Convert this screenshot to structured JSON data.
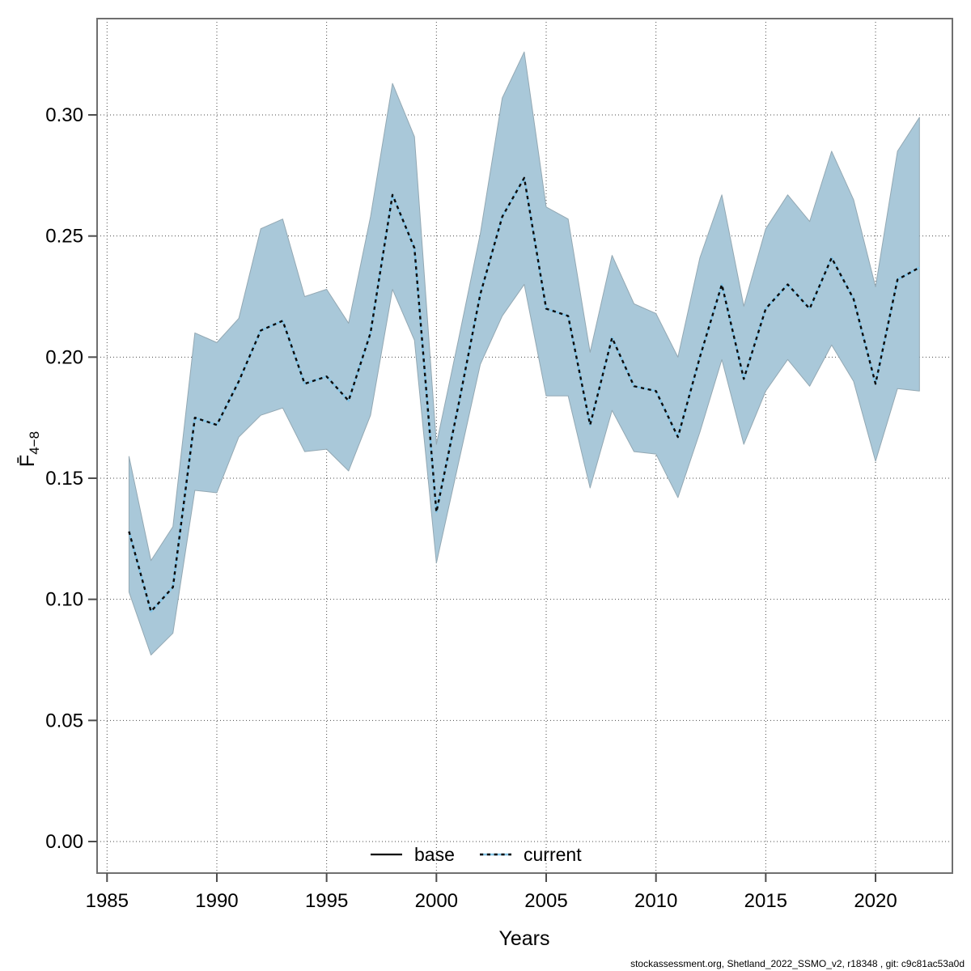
{
  "page": {
    "background": "#ffffff"
  },
  "chart_data": {
    "type": "area",
    "title": "",
    "xlabel": "Years",
    "ylabel_main": "F̄",
    "ylabel_sub": "4−8",
    "x": [
      1986,
      1987,
      1988,
      1989,
      1990,
      1991,
      1992,
      1993,
      1994,
      1995,
      1996,
      1997,
      1998,
      1999,
      2000,
      2001,
      2002,
      2003,
      2004,
      2005,
      2006,
      2007,
      2008,
      2009,
      2010,
      2011,
      2012,
      2013,
      2014,
      2015,
      2016,
      2017,
      2018,
      2019,
      2020,
      2021,
      2022
    ],
    "series": [
      {
        "name": "current_mean",
        "values": [
          0.128,
          0.095,
          0.105,
          0.175,
          0.172,
          0.19,
          0.211,
          0.215,
          0.189,
          0.192,
          0.182,
          0.21,
          0.267,
          0.245,
          0.136,
          0.18,
          0.226,
          0.258,
          0.274,
          0.22,
          0.217,
          0.172,
          0.208,
          0.188,
          0.186,
          0.167,
          0.2,
          0.23,
          0.191,
          0.22,
          0.23,
          0.22,
          0.241,
          0.224,
          0.189,
          0.232,
          0.237
        ]
      },
      {
        "name": "ci_lower",
        "values": [
          0.103,
          0.077,
          0.086,
          0.145,
          0.144,
          0.167,
          0.176,
          0.179,
          0.161,
          0.162,
          0.153,
          0.176,
          0.228,
          0.207,
          0.115,
          0.156,
          0.197,
          0.217,
          0.23,
          0.184,
          0.184,
          0.146,
          0.178,
          0.161,
          0.16,
          0.142,
          0.169,
          0.199,
          0.164,
          0.186,
          0.199,
          0.188,
          0.205,
          0.19,
          0.157,
          0.187,
          0.186
        ]
      },
      {
        "name": "ci_upper",
        "values": [
          0.159,
          0.116,
          0.13,
          0.21,
          0.206,
          0.216,
          0.253,
          0.257,
          0.225,
          0.228,
          0.214,
          0.258,
          0.313,
          0.291,
          0.164,
          0.207,
          0.251,
          0.307,
          0.326,
          0.262,
          0.257,
          0.202,
          0.242,
          0.222,
          0.218,
          0.2,
          0.241,
          0.267,
          0.221,
          0.253,
          0.267,
          0.256,
          0.285,
          0.265,
          0.229,
          0.285,
          0.299
        ]
      }
    ],
    "x_ticks": [
      1985,
      1990,
      1995,
      2000,
      2005,
      2010,
      2015,
      2020
    ],
    "y_ticks": [
      {
        "value": 0.0,
        "label": "0.00"
      },
      {
        "value": 0.05,
        "label": "0.05"
      },
      {
        "value": 0.1,
        "label": "0.10"
      },
      {
        "value": 0.15,
        "label": "0.15"
      },
      {
        "value": 0.2,
        "label": "0.20"
      },
      {
        "value": 0.25,
        "label": "0.25"
      },
      {
        "value": 0.3,
        "label": "0.30"
      }
    ],
    "xlim": [
      1984.55,
      2023.5
    ],
    "ylim": [
      -0.013,
      0.34
    ],
    "grid": "dotted",
    "legend": {
      "position": "bottom-inside",
      "items": [
        {
          "label": "base",
          "style": "solid-black"
        },
        {
          "label": "current",
          "style": "dotted-blue-black"
        }
      ]
    }
  },
  "colors": {
    "band_fill": "#a9c8d9",
    "band_edge": "#93a8b3",
    "current_line_blue": "#85c6e8",
    "current_line_black": "#0b0b0b",
    "base_line": "#000000",
    "grid": "#4a4a4a",
    "plot_border": "#6f6f6f"
  },
  "footer": {
    "text": "stockassessment.org, Shetland_2022_SSMO_v2, r18348 , git: c9c81ac53a0d"
  }
}
